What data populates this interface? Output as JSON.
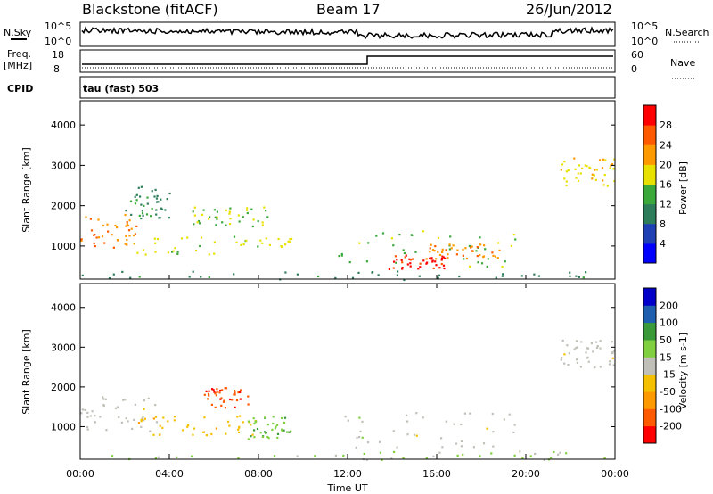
{
  "header": {
    "station": "Blackstone (fitACF)",
    "beam": "Beam 17",
    "date": "26/Jun/2012"
  },
  "status_panels": {
    "nsky_label": "N.Sky",
    "nsky_ticks": [
      "10^5",
      "10^0"
    ],
    "nsearch_label": "N.Search",
    "nsearch_ticks": [
      "10^5",
      "10^0"
    ],
    "freq_label": "Freq.",
    "freq_unit": "[MHz]",
    "freq_ticks": [
      "18",
      "8"
    ],
    "nave_label": "Nave",
    "nave_ticks": [
      "60",
      "0"
    ],
    "cpid_label": "CPID",
    "cpid_value": "tau (fast) 503"
  },
  "colors": {
    "background": "#ffffff",
    "axis": "#000000",
    "ground_scatter": "#c0c0b8"
  },
  "chart_data": [
    {
      "type": "heatmap",
      "title": "",
      "ylabel": "Slant Range [km]",
      "xlabel": "Time UT",
      "xlim": [
        0,
        24
      ],
      "ylim": [
        180,
        4600
      ],
      "ytick_labels": [
        "1000",
        "2000",
        "3000",
        "4000"
      ],
      "yticks": [
        1000,
        2000,
        3000,
        4000
      ],
      "colorbar": {
        "label": "Power [dB]",
        "tick_labels": [
          "4",
          "8",
          "12",
          "16",
          "20",
          "24",
          "28"
        ],
        "range": [
          0,
          30
        ],
        "colors": [
          "#0000ff",
          "#1f3fb5",
          "#2e7d5a",
          "#3aa83a",
          "#e8e100",
          "#ff9900",
          "#ff5a00",
          "#ff0000"
        ]
      },
      "scatter_regions": [
        {
          "t_start": 0.0,
          "t_end": 2.5,
          "range_low": 900,
          "range_high": 1800,
          "value": 22
        },
        {
          "t_start": 2.0,
          "t_end": 4.0,
          "range_low": 1700,
          "range_high": 2500,
          "value": 10
        },
        {
          "t_start": 2.5,
          "t_end": 9.5,
          "range_low": 800,
          "range_high": 1300,
          "value": 16
        },
        {
          "t_start": 5.0,
          "t_end": 8.5,
          "range_low": 1500,
          "range_high": 2000,
          "value": 15
        },
        {
          "t_start": 11.5,
          "t_end": 19.5,
          "range_low": 500,
          "range_high": 1400,
          "value": 14
        },
        {
          "t_start": 13.8,
          "t_end": 16.5,
          "range_low": 450,
          "range_high": 800,
          "value": 27
        },
        {
          "t_start": 15.5,
          "t_end": 19.0,
          "range_low": 700,
          "range_high": 1100,
          "value": 22
        },
        {
          "t_start": 21.5,
          "t_end": 24.0,
          "range_low": 2500,
          "range_high": 3200,
          "value": 18
        },
        {
          "t_start": 0.0,
          "t_end": 24.0,
          "range_low": 180,
          "range_high": 400,
          "value": 10
        }
      ]
    },
    {
      "type": "heatmap",
      "title": "",
      "ylabel": "Slant Range [km]",
      "xlabel": "Time UT",
      "xlim": [
        0,
        24
      ],
      "ylim": [
        180,
        4600
      ],
      "yticks": [
        1000,
        2000,
        3000,
        4000
      ],
      "ytick_labels": [
        "1000",
        "2000",
        "3000",
        "4000"
      ],
      "xtick_labels": [
        "00:00",
        "04:00",
        "08:00",
        "12:00",
        "16:00",
        "20:00",
        "00:00"
      ],
      "xticks": [
        0,
        4,
        8,
        12,
        16,
        20,
        24
      ],
      "colorbar": {
        "label": "Velocity [m s-1]",
        "tick_labels": [
          "200",
          "100",
          "50",
          "15",
          "-15",
          "-50",
          "-100",
          "-200"
        ],
        "range": [
          -250,
          250
        ],
        "colors": [
          "#ff0000",
          "#ff5a00",
          "#ff9900",
          "#f5c000",
          "#c0c0b8",
          "#7fcf3f",
          "#3a9a3a",
          "#1f5fb0",
          "#0000c8"
        ]
      },
      "scatter_regions": [
        {
          "t_start": 0.0,
          "t_end": 3.5,
          "range_low": 900,
          "range_high": 1800,
          "value": 0
        },
        {
          "t_start": 2.5,
          "t_end": 8.0,
          "range_low": 800,
          "range_high": 1300,
          "value": -60
        },
        {
          "t_start": 5.5,
          "t_end": 7.5,
          "range_low": 1500,
          "range_high": 2000,
          "value": -180
        },
        {
          "t_start": 7.5,
          "t_end": 9.5,
          "range_low": 700,
          "range_high": 1300,
          "value": 70
        },
        {
          "t_start": 11.5,
          "t_end": 19.5,
          "range_low": 500,
          "range_high": 1400,
          "value": 0
        },
        {
          "t_start": 21.5,
          "t_end": 24.0,
          "range_low": 2500,
          "range_high": 3200,
          "value": 0
        },
        {
          "t_start": 1.0,
          "t_end": 24.0,
          "range_low": 180,
          "range_high": 400,
          "value": 40
        }
      ]
    }
  ]
}
